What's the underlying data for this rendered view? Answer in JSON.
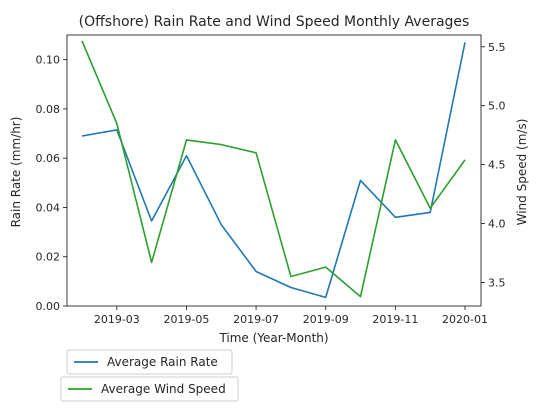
{
  "chart_data": {
    "type": "line",
    "title": "(Offshore) Rain Rate and Wind Speed Monthly Averages",
    "xlabel": "Time (Year-Month)",
    "ylabel_left": "Rain Rate (mm/hr)",
    "ylabel_right": "Wind Speed (m/s)",
    "x": [
      "2019-02",
      "2019-03",
      "2019-04",
      "2019-05",
      "2019-06",
      "2019-07",
      "2019-08",
      "2019-09",
      "2019-10",
      "2019-11",
      "2019-12",
      "2020-01"
    ],
    "x_ticks": [
      "2019-03",
      "2019-05",
      "2019-07",
      "2019-09",
      "2019-11",
      "2020-01"
    ],
    "ylim_left": [
      0,
      0.11
    ],
    "yticks_left": [
      "0.00",
      "0.02",
      "0.04",
      "0.06",
      "0.08",
      "0.10"
    ],
    "ylim_right": [
      3.3,
      5.6
    ],
    "yticks_right": [
      "3.5",
      "4.0",
      "4.5",
      "5.0",
      "5.5"
    ],
    "grid": false,
    "legend_placement": "below",
    "series": [
      {
        "name": "Average Rain Rate",
        "axis": "left",
        "color": "#1f77b4",
        "values": [
          0.069,
          0.0715,
          0.0345,
          0.061,
          0.033,
          0.014,
          0.0075,
          0.0035,
          0.051,
          0.036,
          0.038,
          0.107
        ]
      },
      {
        "name": "Average Wind Speed",
        "axis": "right",
        "color": "#2ca02c",
        "values": [
          5.55,
          4.85,
          3.67,
          4.71,
          4.67,
          4.6,
          3.55,
          3.63,
          3.38,
          4.71,
          4.13,
          4.54
        ]
      }
    ]
  }
}
